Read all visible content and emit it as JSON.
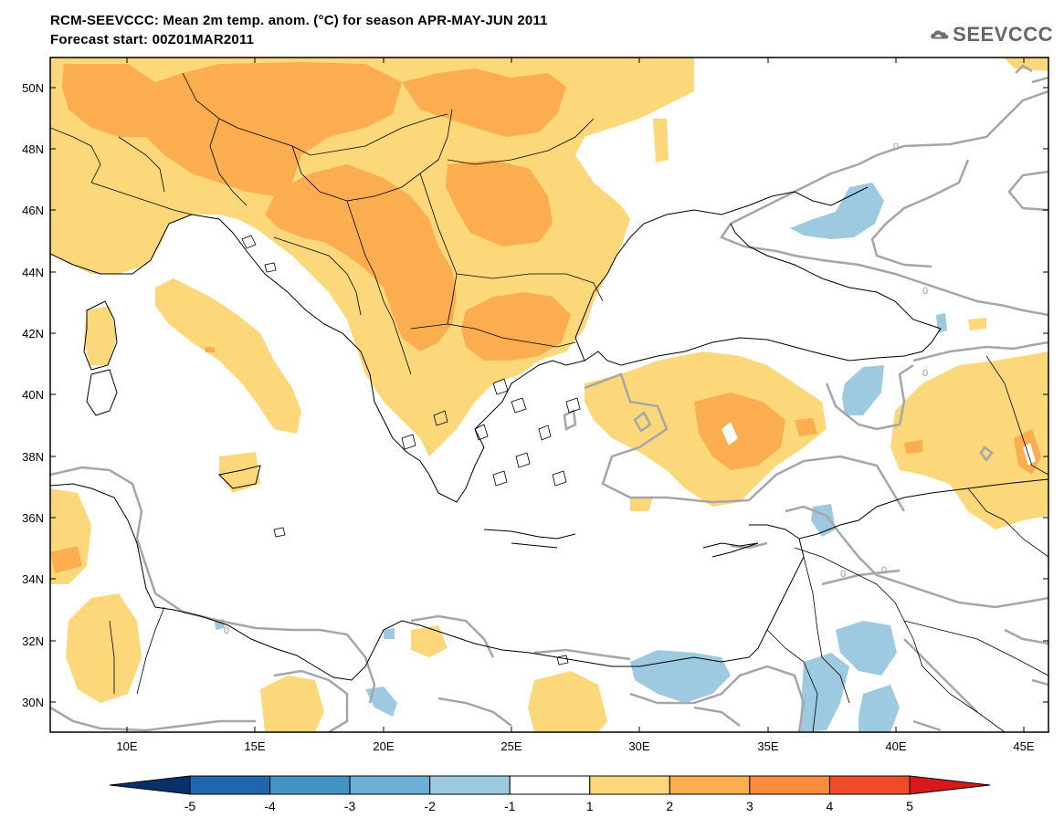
{
  "header": {
    "title_line1": "RCM-SEEVCCC: Mean 2m temp. anom. (°C) for season APR-MAY-JUN 2011",
    "title_line2": "Forecast start: 00Z01MAR2011",
    "logo_text": "SEEVCCC"
  },
  "map": {
    "region": "Eastern Mediterranean / South-East Europe",
    "lon_range": [
      7,
      46
    ],
    "lat_range": [
      29,
      51
    ],
    "lon_ticks": [
      "10E",
      "15E",
      "20E",
      "25E",
      "30E",
      "35E",
      "40E",
      "45E"
    ],
    "lat_ticks": [
      "50N",
      "48N",
      "46N",
      "44N",
      "42N",
      "40N",
      "38N",
      "36N",
      "34N",
      "32N",
      "30N"
    ],
    "contour_labels": [
      "0",
      "0",
      "0",
      "0",
      "0",
      "0"
    ]
  },
  "colorbar": {
    "labels": [
      "-5",
      "-4",
      "-3",
      "-2",
      "-1",
      "1",
      "2",
      "3",
      "4",
      "5"
    ],
    "colors": [
      "#08306b",
      "#2166ac",
      "#4393c3",
      "#6baed6",
      "#9ecae1",
      "#ffffff",
      "#fdd87a",
      "#fbad4f",
      "#fb8c3c",
      "#f04a28",
      "#d7191c"
    ]
  },
  "colors": {
    "anom_1_2": "#fdd87a",
    "anom_2_3": "#fbad4f",
    "anom_neg_1_2": "#9ecae1",
    "zero_contour": "#a6a6a6",
    "coastline": "#000000"
  }
}
